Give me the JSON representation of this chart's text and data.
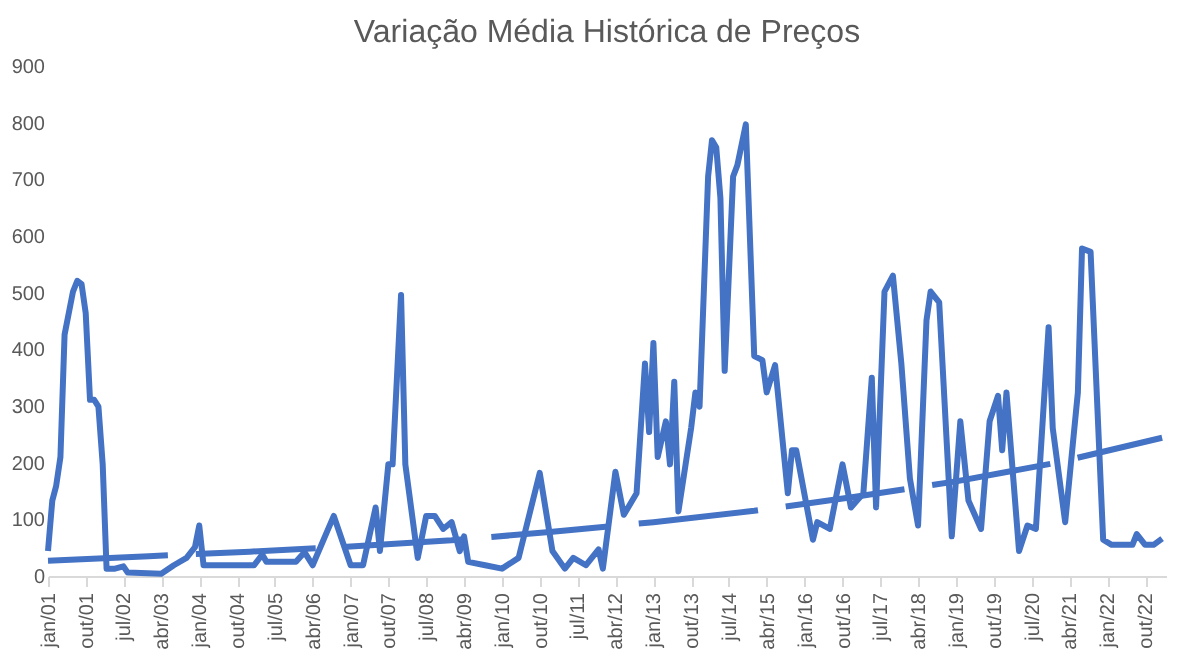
{
  "chart_data": {
    "type": "line",
    "title": "Variação Média Histórica de Preços",
    "series": [
      {
        "color": "#4472c4",
        "line_style": "solid",
        "x": [
          "2001-01",
          "2001-02",
          "2001-03",
          "2001-04",
          "2001-05",
          "2001-07",
          "2001-08",
          "2001-09",
          "2001-10",
          "2001-11",
          "2001-12",
          "2002-01",
          "2002-02",
          "2002-03",
          "2002-05",
          "2002-07",
          "2002-08",
          "2003-04",
          "2003-07",
          "2003-10",
          "2003-12",
          "2004-01",
          "2004-02",
          "2005-02",
          "2005-04",
          "2005-05",
          "2005-12",
          "2006-02",
          "2006-04",
          "2006-09",
          "2007-01",
          "2007-04",
          "2007-07",
          "2007-08",
          "2007-10",
          "2007-11",
          "2008-01",
          "2008-02",
          "2008-05",
          "2008-07",
          "2008-09",
          "2008-11",
          "2009-01",
          "2009-03",
          "2009-04",
          "2009-05",
          "2009-09",
          "2010-01",
          "2010-05",
          "2010-10",
          "2011-01",
          "2011-04",
          "2011-06",
          "2011-09",
          "2011-12",
          "2012-01",
          "2012-04",
          "2012-06",
          "2012-09",
          "2012-11",
          "2012-12",
          "2013-01",
          "2013-02",
          "2013-04",
          "2013-05",
          "2013-06",
          "2013-07",
          "2013-10",
          "2013-11",
          "2013-12",
          "2014-02",
          "2014-03",
          "2014-04",
          "2014-05",
          "2014-06",
          "2014-08",
          "2014-09",
          "2014-11",
          "2015-01",
          "2015-03",
          "2015-04",
          "2015-06",
          "2015-09",
          "2015-10",
          "2015-11",
          "2016-03",
          "2016-04",
          "2016-07",
          "2016-10",
          "2016-12",
          "2017-03",
          "2017-05",
          "2017-06",
          "2017-08",
          "2017-10",
          "2017-12",
          "2018-02",
          "2018-04",
          "2018-06",
          "2018-07",
          "2018-09",
          "2018-12",
          "2019-02",
          "2019-04",
          "2019-07",
          "2019-09",
          "2019-11",
          "2019-12",
          "2020-01",
          "2020-04",
          "2020-06",
          "2020-08",
          "2020-11",
          "2020-12",
          "2021-03",
          "2021-06",
          "2021-07",
          "2021-09",
          "2021-12",
          "2022-02",
          "2022-07",
          "2022-08",
          "2022-10",
          "2022-12",
          "2023-02"
        ],
        "values": [
          44,
          133,
          159,
          210,
          426,
          502,
          521,
          515,
          464,
          311,
          311,
          299,
          197,
          13,
          13,
          17,
          6,
          4,
          19,
          32,
          51,
          89,
          19,
          19,
          38,
          25,
          25,
          42,
          19,
          106,
          19,
          19,
          121,
          44,
          197,
          197,
          496,
          197,
          32,
          106,
          106,
          83,
          95,
          44,
          70,
          25,
          19,
          13,
          32,
          182,
          44,
          13,
          32,
          19,
          47,
          13,
          184,
          108,
          146,
          375,
          254,
          411,
          210,
          273,
          197,
          343,
          114,
          261,
          324,
          299,
          705,
          769,
          756,
          667,
          362,
          705,
          725,
          797,
          388,
          381,
          324,
          372,
          146,
          222,
          222,
          64,
          95,
          83,
          197,
          121,
          146,
          350,
          121,
          502,
          530,
          375,
          172,
          89,
          451,
          502,
          483,
          70,
          273,
          133,
          83,
          273,
          318,
          222,
          324,
          44,
          89,
          83,
          439,
          261,
          95,
          324,
          578,
          572,
          64,
          55,
          55,
          74,
          55,
          55,
          66
        ]
      },
      {
        "color": "#4472c4",
        "line_style": "dashed",
        "x": [
          "2001-01",
          "2003-01",
          "2005-01",
          "2007-01",
          "2009-01",
          "2011-01",
          "2013-01",
          "2015-01",
          "2017-01",
          "2019-01",
          "2021-01",
          "2023-02"
        ],
        "values": [
          27,
          35,
          43,
          52,
          63,
          78,
          95,
          115,
          140,
          167,
          200,
          244
        ]
      }
    ],
    "xlim": [
      "2001-01",
      "2023-03"
    ],
    "xticks": [
      {
        "value": "2001-01",
        "label": "jan/01"
      },
      {
        "value": "2001-10",
        "label": "out/01"
      },
      {
        "value": "2002-07",
        "label": "jul/02"
      },
      {
        "value": "2003-04",
        "label": "abr/03"
      },
      {
        "value": "2004-01",
        "label": "jan/04"
      },
      {
        "value": "2004-10",
        "label": "out/04"
      },
      {
        "value": "2005-07",
        "label": "jul/05"
      },
      {
        "value": "2006-04",
        "label": "abr/06"
      },
      {
        "value": "2007-01",
        "label": "jan/07"
      },
      {
        "value": "2007-10",
        "label": "out/07"
      },
      {
        "value": "2008-07",
        "label": "jul/08"
      },
      {
        "value": "2009-04",
        "label": "abr/09"
      },
      {
        "value": "2010-01",
        "label": "jan/10"
      },
      {
        "value": "2010-10",
        "label": "out/10"
      },
      {
        "value": "2011-07",
        "label": "jul/11"
      },
      {
        "value": "2012-04",
        "label": "abr/12"
      },
      {
        "value": "2013-01",
        "label": "jan/13"
      },
      {
        "value": "2013-10",
        "label": "out/13"
      },
      {
        "value": "2014-07",
        "label": "jul/14"
      },
      {
        "value": "2015-04",
        "label": "abr/15"
      },
      {
        "value": "2016-01",
        "label": "jan/16"
      },
      {
        "value": "2016-10",
        "label": "out/16"
      },
      {
        "value": "2017-07",
        "label": "jul/17"
      },
      {
        "value": "2018-04",
        "label": "abr/18"
      },
      {
        "value": "2019-01",
        "label": "jan/19"
      },
      {
        "value": "2019-10",
        "label": "out/19"
      },
      {
        "value": "2020-07",
        "label": "jul/20"
      },
      {
        "value": "2021-04",
        "label": "abr/21"
      },
      {
        "value": "2022-01",
        "label": "jan/22"
      },
      {
        "value": "2022-10",
        "label": "out/22"
      }
    ],
    "ylim": [
      0,
      900
    ],
    "yticks": [
      0,
      100,
      200,
      300,
      400,
      500,
      600,
      700,
      800,
      900
    ],
    "marker": "none"
  }
}
